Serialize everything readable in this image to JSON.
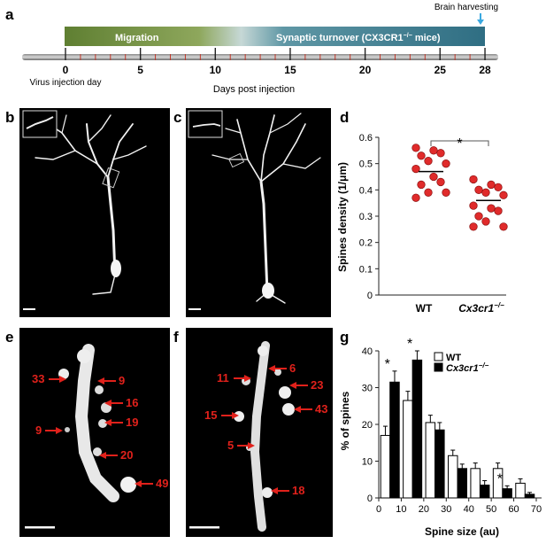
{
  "panel_letters": {
    "a": "a",
    "b": "b",
    "c": "c",
    "d": "d",
    "e": "e",
    "f": "f",
    "g": "g"
  },
  "timeline": {
    "migration_label": "Migration",
    "turnover_label": "Synaptic turnover (CX3CR1",
    "turnover_sup": "−/−",
    "turnover_suffix": " mice)",
    "harvest_label": "Brain harvesting",
    "virus_label": "Virus injection day",
    "axis_label": "Days post injection",
    "ticks": [
      "0",
      "5",
      "10",
      "15",
      "20",
      "25",
      "28"
    ],
    "tick_days": [
      0,
      5,
      10,
      15,
      20,
      25,
      28
    ],
    "colors": {
      "migration": "#6f8a3d",
      "turnover": "#3f7b8f",
      "arrow": "#3aa8e0"
    }
  },
  "chart_data": [
    {
      "panel": "d",
      "type": "scatter",
      "ylabel": "Spines density (1/μm)",
      "ylim": [
        0,
        0.6
      ],
      "yticks": [
        "0",
        "0.1",
        "0.2",
        "0.3",
        "0.4",
        "0.5",
        "0.6"
      ],
      "categories": [
        "WT",
        "Cx3cr1"
      ],
      "category_sup": [
        "",
        "−/−"
      ],
      "significance": "*",
      "series": [
        {
          "category": "WT",
          "values": [
            0.56,
            0.55,
            0.54,
            0.53,
            0.51,
            0.5,
            0.48,
            0.45,
            0.43,
            0.42,
            0.39,
            0.39,
            0.37
          ],
          "mean": 0.47
        },
        {
          "category": "Cx3cr1",
          "values": [
            0.44,
            0.42,
            0.41,
            0.4,
            0.39,
            0.38,
            0.34,
            0.33,
            0.32,
            0.3,
            0.28,
            0.26,
            0.26
          ],
          "mean": 0.36
        }
      ],
      "colors": {
        "point": "#e02b2b",
        "point_edge": "#8a1010"
      }
    },
    {
      "panel": "g",
      "type": "bar",
      "ylabel": "% of spines",
      "xlabel": "Spine size (au)",
      "ylim": [
        0,
        40
      ],
      "yticks": [
        "0",
        "10",
        "20",
        "30",
        "40"
      ],
      "xticks": [
        "0",
        "10",
        "20",
        "30",
        "40",
        "50",
        "60",
        "70"
      ],
      "categories": [
        5,
        15,
        25,
        35,
        45,
        55,
        65
      ],
      "legend": [
        "WT",
        "Cx3cr1"
      ],
      "legend_sup": [
        "",
        "−/−"
      ],
      "series": [
        {
          "name": "WT",
          "values": [
            17,
            26.5,
            20.5,
            11.5,
            8,
            8,
            4
          ],
          "errors": [
            2.5,
            2.5,
            2,
            1.5,
            1.5,
            1.5,
            1.2
          ],
          "color": "#ffffff"
        },
        {
          "name": "Cx3cr1",
          "values": [
            31.5,
            37.5,
            18.5,
            8,
            3.5,
            2.5,
            1
          ],
          "errors": [
            3,
            2.5,
            2,
            1.2,
            1.2,
            0.8,
            0.5
          ],
          "color": "#000000"
        }
      ],
      "significance": [
        {
          "index": 0,
          "label": "*"
        },
        {
          "index": 1,
          "label": "*"
        },
        {
          "index": 5,
          "label": "*"
        }
      ]
    }
  ],
  "spine_labels_e": [
    "33",
    "9",
    "16",
    "19",
    "9",
    "20",
    "49"
  ],
  "spine_labels_f": [
    "11",
    "6",
    "23",
    "43",
    "15",
    "5",
    "18"
  ]
}
